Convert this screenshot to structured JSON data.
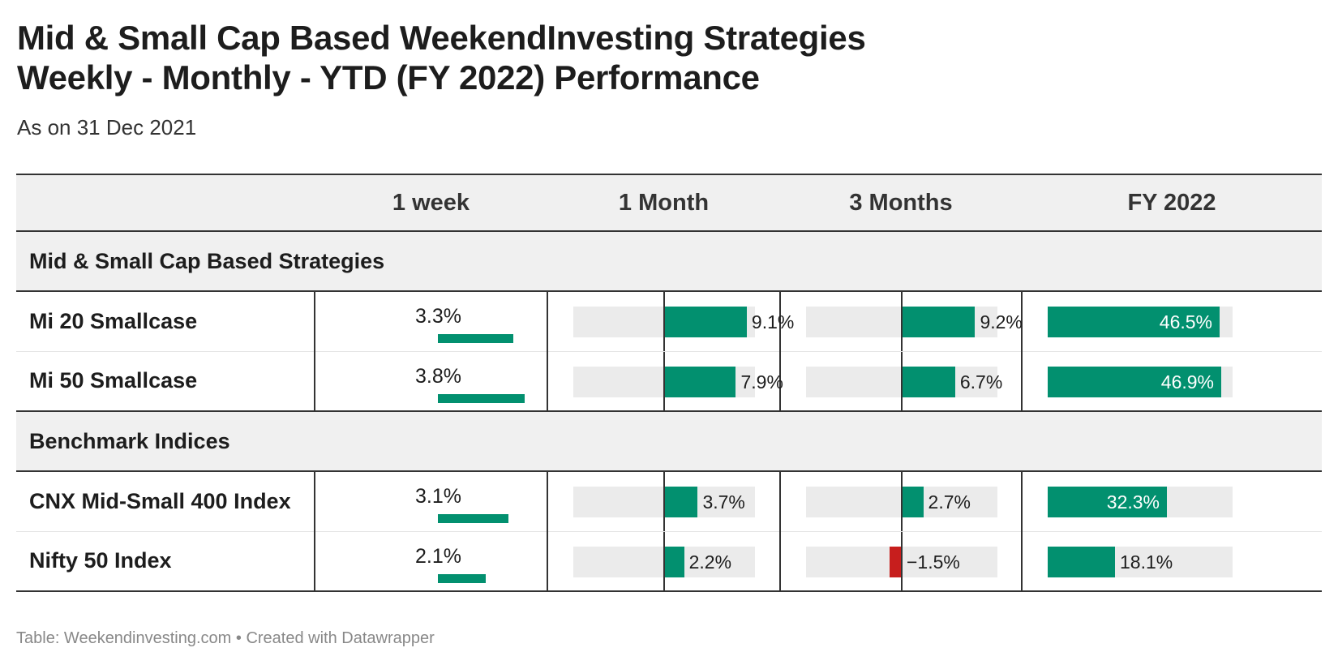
{
  "title_line1": "Mid & Small Cap Based WeekendInvesting Strategies",
  "title_line2": "Weekly - Monthly - YTD (FY 2022) Performance",
  "subtitle": "As on 31 Dec 2021",
  "footer": "Table: Weekendinvesting.com • Created with Datawrapper",
  "colors": {
    "positive": "#02906f",
    "negative": "#c71e1d",
    "track": "#ebebeb",
    "header_bg": "#f0f0f0"
  },
  "chart_data": {
    "type": "table",
    "columns": [
      "",
      "1 week",
      "1 Month",
      "3 Months",
      "FY 2022"
    ],
    "groups": [
      {
        "name": "Mid & Small Cap Based Strategies",
        "rows": [
          {
            "name": "Mi 20 Smallcase",
            "week": 3.3,
            "month": 9.1,
            "three_months": 9.2,
            "fy": 46.5,
            "labels": {
              "week": "3.3%",
              "month": "9.1%",
              "three_months": "9.2%",
              "fy": "46.5%"
            }
          },
          {
            "name": "Mi 50 Smallcase",
            "week": 3.8,
            "month": 7.9,
            "three_months": 6.7,
            "fy": 46.9,
            "labels": {
              "week": "3.8%",
              "month": "7.9%",
              "three_months": "6.7%",
              "fy": "46.9%"
            }
          }
        ]
      },
      {
        "name": "Benchmark Indices",
        "rows": [
          {
            "name": "CNX Mid-Small 400 Index",
            "week": 3.1,
            "month": 3.7,
            "three_months": 2.7,
            "fy": 32.3,
            "labels": {
              "week": "3.1%",
              "month": "3.7%",
              "three_months": "2.7%",
              "fy": "32.3%"
            }
          },
          {
            "name": "Nifty 50 Index",
            "week": 2.1,
            "month": 2.2,
            "three_months": -1.5,
            "fy": 18.1,
            "labels": {
              "week": "2.1%",
              "month": "2.2%",
              "three_months": "−1.5%",
              "fy": "18.1%"
            }
          }
        ]
      }
    ],
    "scales": {
      "week": [
        0,
        3.8
      ],
      "month": [
        -10,
        10
      ],
      "three_months": [
        -12,
        12
      ],
      "fy": [
        0,
        50
      ]
    }
  }
}
